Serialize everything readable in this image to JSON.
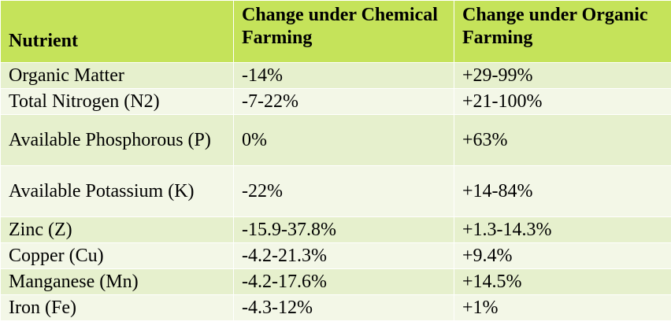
{
  "table": {
    "headers": [
      "Nutrient",
      "Change under Chemical Farming",
      "Change under Organic Farming"
    ],
    "rows": [
      {
        "nutrient": "Organic Matter",
        "chemical": "-14%",
        "organic": "+29-99%"
      },
      {
        "nutrient": "Total Nitrogen (N2)",
        "chemical": "-7-22%",
        "organic": "+21-100%"
      },
      {
        "nutrient": "Available Phosphorous (P)",
        "chemical": "0%",
        "organic": "+63%"
      },
      {
        "nutrient": "Available Potassium (K)",
        "chemical": "-22%",
        "organic": "+14-84%"
      },
      {
        "nutrient": "Zinc (Z)",
        "chemical": "-15.9-37.8%",
        "organic": "+1.3-14.3%"
      },
      {
        "nutrient": "Copper (Cu)",
        "chemical": "-4.2-21.3%",
        "organic": "+9.4%"
      },
      {
        "nutrient": "Manganese (Mn)",
        "chemical": "-4.2-17.6%",
        "organic": "+14.5%"
      },
      {
        "nutrient": "Iron (Fe)",
        "chemical": "-4.3-12%",
        "organic": "+1%"
      }
    ]
  },
  "colors": {
    "header_bg": "#c5e35a",
    "row_odd_bg": "#e6f0cd",
    "row_even_bg": "#f3f7e7",
    "border": "#ffffff"
  }
}
